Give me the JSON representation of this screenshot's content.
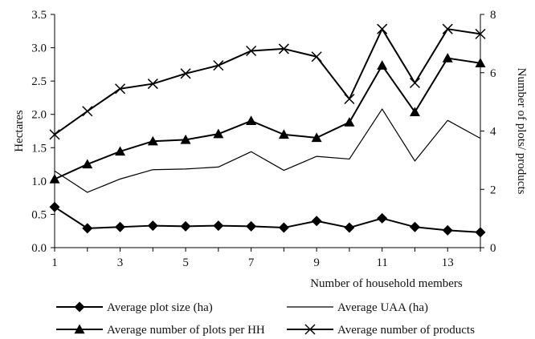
{
  "chart_data": {
    "type": "line",
    "title": "",
    "x": [
      1,
      2,
      3,
      4,
      5,
      6,
      7,
      8,
      9,
      10,
      11,
      12,
      13,
      14
    ],
    "xlim": [
      1,
      14
    ],
    "x_ticks": [
      1,
      3,
      5,
      7,
      9,
      11,
      13
    ],
    "xlabel": "Number of household members",
    "ylabel_left": "Hectares",
    "ylim_left": [
      0,
      3.5
    ],
    "y_ticks_left": [
      "0.0",
      "0.5",
      "1.0",
      "1.5",
      "2.0",
      "2.5",
      "3.0",
      "3.5"
    ],
    "ylabel_right": "Number of plots/ products",
    "ylim_right": [
      0,
      8
    ],
    "y_ticks_right": [
      "0",
      "2",
      "4",
      "6",
      "8"
    ],
    "grid": false,
    "legend_position": "bottom",
    "series": [
      {
        "name": "Average plot size (ha)",
        "axis": "left",
        "marker": "diamond",
        "line_width": 2,
        "values": [
          0.61,
          0.29,
          0.31,
          0.33,
          0.32,
          0.33,
          0.32,
          0.3,
          0.4,
          0.3,
          0.44,
          0.31,
          0.26,
          0.23
        ]
      },
      {
        "name": "Average UAA (ha)",
        "axis": "left",
        "marker": "none",
        "line_width": 1.2,
        "values": [
          1.15,
          0.83,
          1.03,
          1.17,
          1.18,
          1.21,
          1.44,
          1.16,
          1.37,
          1.33,
          2.08,
          1.3,
          1.91,
          1.64
        ]
      },
      {
        "name": "Average number of plots per HH",
        "axis": "right",
        "marker": "triangle",
        "line_width": 2,
        "values": [
          2.35,
          2.86,
          3.3,
          3.65,
          3.7,
          3.9,
          4.35,
          3.88,
          3.77,
          4.3,
          6.25,
          4.65,
          6.5,
          6.33
        ]
      },
      {
        "name": "Average number of products",
        "axis": "right",
        "marker": "x",
        "line_width": 2,
        "values": [
          3.88,
          4.68,
          5.45,
          5.62,
          5.97,
          6.25,
          6.75,
          6.82,
          6.55,
          5.1,
          7.5,
          5.65,
          7.5,
          7.33
        ]
      }
    ],
    "legend_layout": [
      [
        "Average plot size (ha)",
        "Average UAA (ha)"
      ],
      [
        "Average number of plots per HH",
        "Average number of products"
      ]
    ]
  }
}
